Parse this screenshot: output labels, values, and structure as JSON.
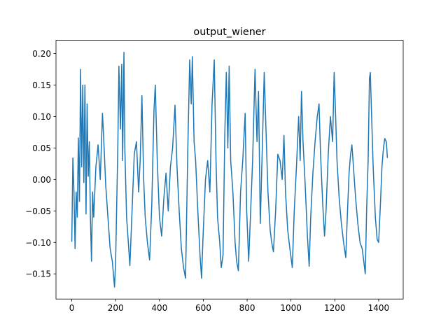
{
  "chart_data": {
    "type": "line",
    "title": "output_wiener",
    "x": [
      0,
      5,
      10,
      15,
      20,
      25,
      30,
      35,
      40,
      45,
      50,
      55,
      60,
      65,
      70,
      75,
      80,
      85,
      90,
      95,
      100,
      110,
      120,
      130,
      140,
      145,
      155,
      165,
      175,
      185,
      195,
      200,
      210,
      215,
      222,
      228,
      232,
      238,
      242,
      250,
      258,
      265,
      275,
      285,
      295,
      305,
      312,
      320,
      328,
      335,
      345,
      355,
      365,
      375,
      381,
      390,
      400,
      410,
      420,
      430,
      440,
      450,
      460,
      471,
      480,
      490,
      500,
      510,
      519,
      530,
      538,
      545,
      550,
      558,
      565,
      575,
      585,
      592,
      599,
      610,
      620,
      630,
      640,
      650,
      658,
      665,
      675,
      682,
      690,
      698,
      705,
      712,
      718,
      725,
      735,
      745,
      752,
      760,
      770,
      780,
      791,
      798,
      807,
      815,
      825,
      836,
      845,
      852,
      860,
      870,
      878,
      885,
      895,
      905,
      912,
      920,
      930,
      940,
      950,
      960,
      968,
      975,
      985,
      995,
      1006,
      1015,
      1025,
      1035,
      1042,
      1048,
      1055,
      1065,
      1075,
      1083,
      1090,
      1100,
      1110,
      1120,
      1128,
      1135,
      1145,
      1153,
      1160,
      1170,
      1180,
      1190,
      1197,
      1202,
      1210,
      1220,
      1230,
      1240,
      1250,
      1258,
      1265,
      1272,
      1278,
      1285,
      1295,
      1305,
      1315,
      1325,
      1332,
      1339,
      1345,
      1352,
      1358,
      1362,
      1368,
      1375,
      1385,
      1393,
      1400,
      1408,
      1415,
      1422,
      1428,
      1435,
      1440
    ],
    "series": [
      {
        "color": "#1f77b4",
        "values": [
          -0.099,
          0.034,
          -0.02,
          -0.11,
          -0.02,
          -0.06,
          0.066,
          -0.035,
          0.175,
          0.02,
          0.15,
          -0.005,
          0.15,
          -0.055,
          0.12,
          0.005,
          0.06,
          -0.06,
          -0.13,
          -0.02,
          -0.06,
          0.02,
          0.055,
          0.0,
          0.105,
          0.07,
          -0.01,
          -0.06,
          -0.11,
          -0.13,
          -0.171,
          -0.13,
          0.05,
          0.18,
          0.08,
          0.183,
          0.03,
          0.202,
          0.05,
          -0.06,
          -0.1,
          -0.137,
          -0.05,
          0.04,
          0.06,
          -0.02,
          0.03,
          0.133,
          0.0,
          -0.06,
          -0.1,
          -0.128,
          -0.04,
          0.11,
          0.15,
          0.03,
          -0.06,
          -0.09,
          -0.03,
          0.01,
          -0.05,
          0.02,
          0.05,
          0.118,
          0.02,
          -0.05,
          -0.11,
          -0.14,
          -0.157,
          0.06,
          0.19,
          0.12,
          0.195,
          0.06,
          0.03,
          -0.05,
          -0.12,
          -0.157,
          -0.09,
          0.0,
          0.03,
          -0.02,
          0.12,
          0.19,
          0.03,
          -0.06,
          -0.1,
          -0.14,
          -0.12,
          0.07,
          0.17,
          0.05,
          0.18,
          0.03,
          -0.02,
          -0.1,
          -0.13,
          -0.145,
          -0.02,
          0.03,
          0.105,
          -0.05,
          -0.13,
          -0.06,
          0.03,
          0.175,
          0.06,
          0.14,
          -0.07,
          0.06,
          0.17,
          0.09,
          -0.02,
          -0.08,
          -0.1,
          -0.115,
          -0.05,
          0.04,
          0.03,
          0.0,
          0.07,
          -0.02,
          -0.08,
          -0.11,
          -0.14,
          -0.05,
          0.02,
          0.1,
          0.03,
          0.14,
          0.06,
          -0.01,
          -0.09,
          -0.138,
          -0.06,
          0.01,
          0.06,
          0.1,
          0.12,
          0.04,
          -0.04,
          -0.09,
          -0.05,
          0.04,
          0.1,
          0.06,
          0.17,
          0.12,
          0.03,
          -0.03,
          -0.07,
          -0.1,
          -0.124,
          -0.05,
          0.01,
          0.04,
          0.055,
          0.02,
          -0.03,
          -0.07,
          -0.1,
          -0.11,
          -0.13,
          -0.15,
          -0.05,
          0.03,
          0.16,
          0.17,
          0.1,
          0.02,
          -0.06,
          -0.095,
          -0.1,
          -0.04,
          0.02,
          0.05,
          0.065,
          0.06,
          0.034
        ]
      }
    ],
    "xlim": [
      -72,
      1512
    ],
    "ylim": [
      -0.19,
      0.221
    ],
    "xticks": [
      0,
      200,
      400,
      600,
      800,
      1000,
      1200,
      1400
    ],
    "yticks": [
      {
        "value": -0.15,
        "label": "−0.15"
      },
      {
        "value": -0.1,
        "label": "−0.10"
      },
      {
        "value": -0.05,
        "label": "−0.05"
      },
      {
        "value": 0,
        "label": "0.00"
      },
      {
        "value": 0.05,
        "label": "0.05"
      },
      {
        "value": 0.1,
        "label": "0.10"
      },
      {
        "value": 0.15,
        "label": "0.15"
      },
      {
        "value": 0.2,
        "label": "0.20"
      }
    ]
  }
}
